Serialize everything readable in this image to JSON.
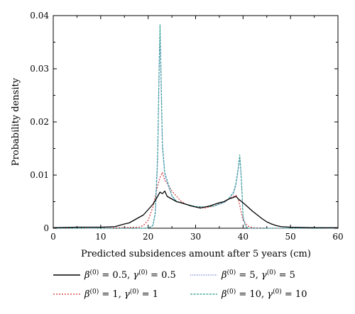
{
  "chart_data": {
    "type": "line",
    "xlabel": "Predicted subsidences amount after 5 years (cm)",
    "ylabel": "Probability density",
    "xlim": [
      0,
      60
    ],
    "ylim": [
      0,
      0.04
    ],
    "xticks": [
      0,
      10,
      20,
      30,
      40,
      50,
      60
    ],
    "xtick_labels": [
      "0",
      "10",
      "20",
      "30",
      "40",
      "50",
      "60"
    ],
    "yticks": [
      0,
      0.01,
      0.02,
      0.03,
      0.04
    ],
    "ytick_labels": [
      "0",
      "0.01",
      "0.02",
      "0.03",
      "0.04"
    ],
    "grid": false,
    "legend_position": "bottom",
    "series": [
      {
        "name": "β(0) = 0.5, γ(0) = 0.5",
        "beta": "0.5",
        "gamma": "0.5",
        "color": "#000000",
        "dash": "",
        "x": [
          0,
          5,
          10,
          13,
          15,
          16,
          17,
          18,
          19,
          20,
          21,
          22,
          22.5,
          23,
          23.5,
          24,
          25,
          26,
          27,
          28,
          29,
          30,
          31,
          32,
          33,
          34,
          35,
          36,
          37,
          38,
          38.5,
          39,
          40,
          41,
          42,
          43,
          44,
          45,
          46,
          47,
          48,
          50,
          55,
          60
        ],
        "y": [
          0.0001,
          0.0002,
          0.0002,
          0.0003,
          0.0008,
          0.001,
          0.0015,
          0.002,
          0.0025,
          0.0035,
          0.0045,
          0.006,
          0.0068,
          0.0065,
          0.007,
          0.006,
          0.0055,
          0.005,
          0.0048,
          0.0045,
          0.0042,
          0.004,
          0.0038,
          0.004,
          0.0042,
          0.0045,
          0.0048,
          0.005,
          0.0055,
          0.0058,
          0.006,
          0.0055,
          0.0048,
          0.004,
          0.0032,
          0.0025,
          0.0018,
          0.0012,
          0.0008,
          0.0005,
          0.0003,
          0.0002,
          0.0001,
          0.0001
        ]
      },
      {
        "name": "β(0) = 1, γ(0) = 1",
        "beta": "1",
        "gamma": "1",
        "color": "#d62728",
        "dash": "2,2",
        "x": [
          0,
          10,
          18,
          19,
          20,
          21,
          22,
          22.5,
          23,
          23.5,
          24,
          25,
          26,
          27,
          28,
          30,
          32,
          34,
          35,
          36,
          37,
          38,
          38.5,
          39,
          39.5,
          40,
          41,
          42,
          45,
          50,
          60
        ],
        "y": [
          0,
          0,
          0.0002,
          0.0005,
          0.0015,
          0.004,
          0.008,
          0.0095,
          0.0105,
          0.009,
          0.0085,
          0.007,
          0.006,
          0.005,
          0.0045,
          0.004,
          0.0038,
          0.0042,
          0.0046,
          0.005,
          0.0055,
          0.006,
          0.0062,
          0.0055,
          0.0035,
          0.0015,
          0.0004,
          0.0001,
          0,
          0,
          0
        ]
      },
      {
        "name": "β(0) = 5, γ(0) = 5",
        "beta": "5",
        "gamma": "5",
        "color": "#5b6fd6",
        "dash": "1,1.5",
        "x": [
          0,
          10,
          20,
          21,
          21.5,
          22,
          22.3,
          22.5,
          22.7,
          23,
          23.5,
          24,
          25,
          26,
          28,
          30,
          32,
          34,
          36,
          37,
          38,
          38.5,
          39,
          39.3,
          39.5,
          39.8,
          40,
          40.5,
          41,
          45,
          50,
          60
        ],
        "y": [
          0,
          0,
          0,
          0.0005,
          0.0025,
          0.012,
          0.028,
          0.036,
          0.028,
          0.015,
          0.01,
          0.0085,
          0.006,
          0.005,
          0.0045,
          0.004,
          0.004,
          0.0042,
          0.0048,
          0.0055,
          0.0065,
          0.008,
          0.011,
          0.013,
          0.011,
          0.006,
          0.002,
          0.0004,
          0,
          0,
          0,
          0
        ]
      },
      {
        "name": "β(0) = 10, γ(0) = 10",
        "beta": "10",
        "gamma": "10",
        "color": "#2a9d8f",
        "dash": "3,1.5",
        "x": [
          0,
          10,
          20,
          21,
          21.5,
          22,
          22.3,
          22.5,
          22.7,
          23,
          23.5,
          24,
          25,
          26,
          28,
          30,
          32,
          34,
          36,
          37,
          38,
          38.5,
          39,
          39.3,
          39.5,
          39.8,
          40,
          40.5,
          41,
          45,
          50,
          60
        ],
        "y": [
          0,
          0,
          0,
          0.0005,
          0.003,
          0.014,
          0.03,
          0.0383,
          0.03,
          0.016,
          0.0105,
          0.009,
          0.0062,
          0.005,
          0.0045,
          0.0041,
          0.004,
          0.0042,
          0.0049,
          0.0056,
          0.0068,
          0.0085,
          0.0115,
          0.0138,
          0.0115,
          0.0065,
          0.0022,
          0.0004,
          0,
          0,
          0,
          0
        ]
      }
    ]
  }
}
